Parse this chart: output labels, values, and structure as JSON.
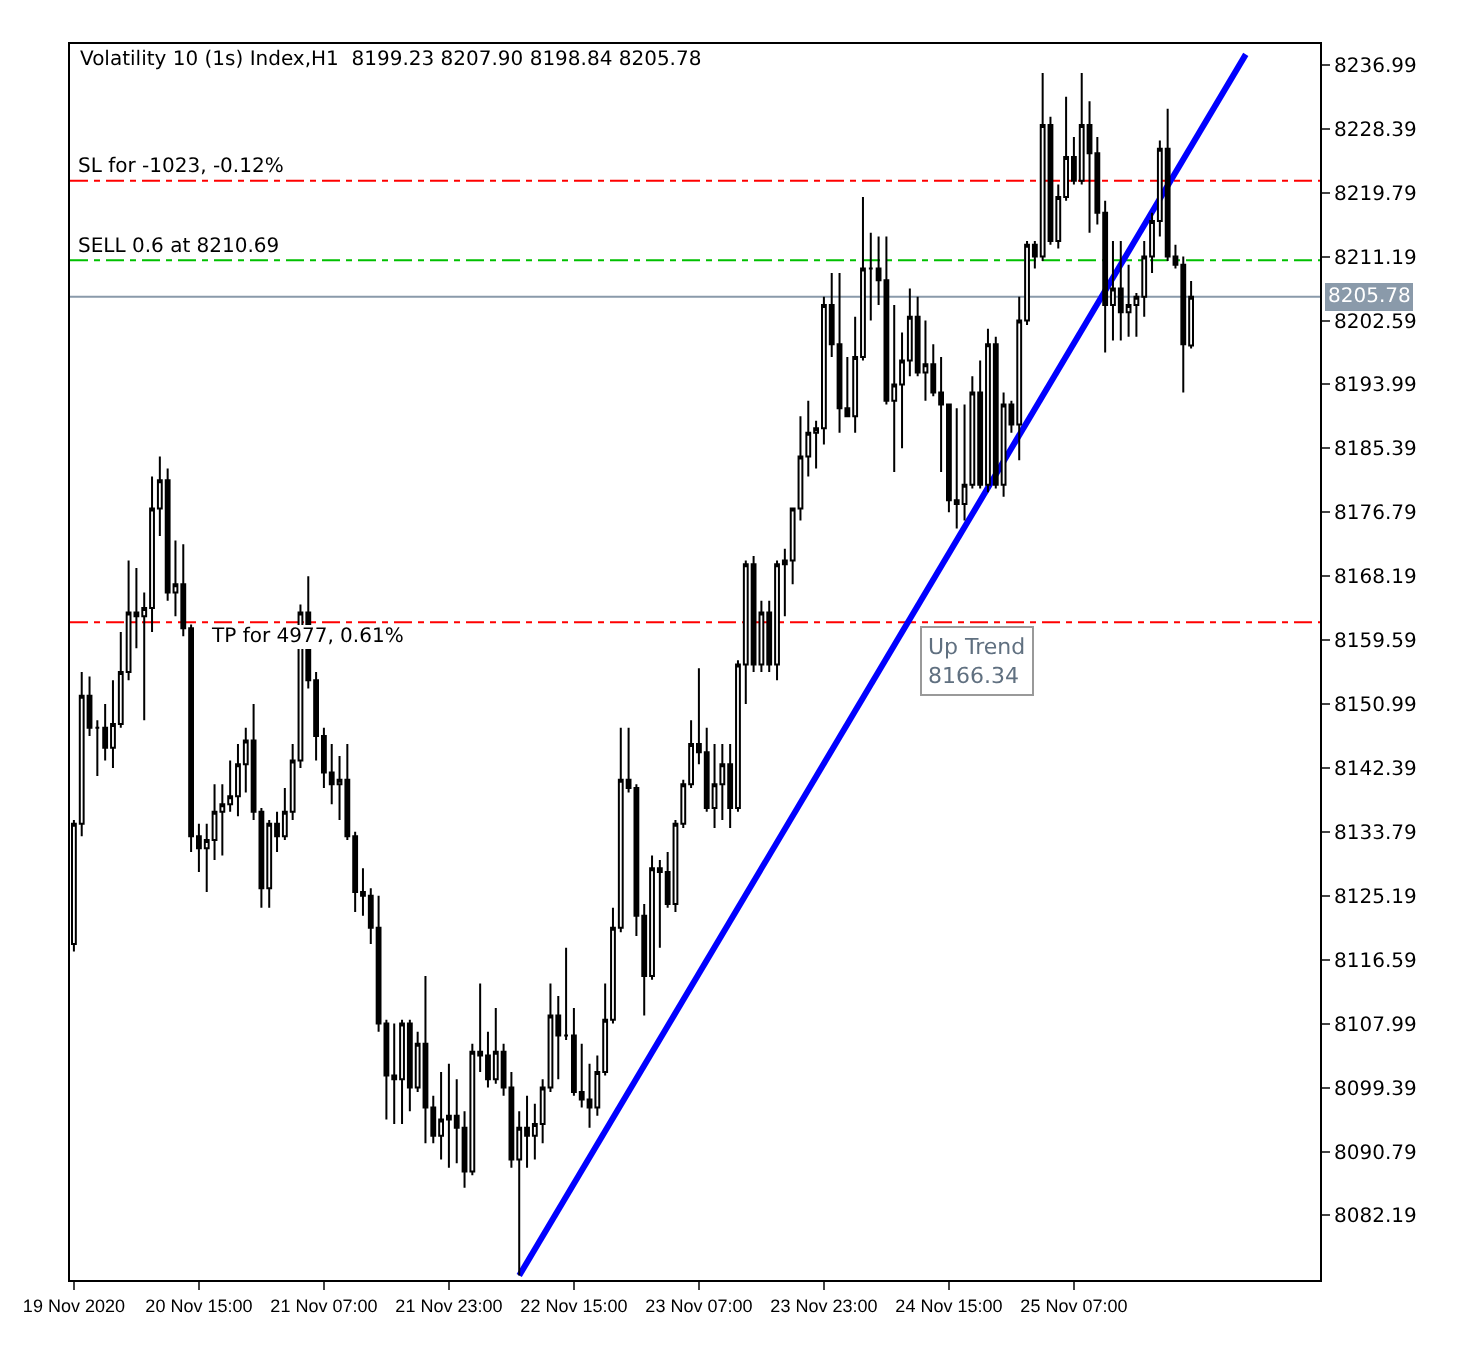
{
  "chart_data": {
    "type": "candlestick",
    "title": "Volatility 10 (1s) Index,H1  8199.23 8207.90 8198.84 8205.78",
    "x": [
      "2020-11-19T23:00",
      "2020-11-20T00:00",
      "2020-11-20T01:00",
      "2020-11-20T02:00",
      "2020-11-20T03:00",
      "2020-11-20T04:00",
      "2020-11-20T05:00",
      "2020-11-20T06:00",
      "2020-11-20T07:00",
      "2020-11-20T08:00",
      "2020-11-20T09:00",
      "2020-11-20T10:00",
      "2020-11-20T11:00",
      "2020-11-20T12:00",
      "2020-11-20T13:00",
      "2020-11-20T14:00",
      "2020-11-20T15:00",
      "2020-11-20T16:00",
      "2020-11-20T17:00",
      "2020-11-20T18:00",
      "2020-11-20T19:00",
      "2020-11-20T20:00",
      "2020-11-20T21:00",
      "2020-11-20T22:00",
      "2020-11-20T23:00",
      "2020-11-21T00:00",
      "2020-11-21T01:00",
      "2020-11-21T02:00",
      "2020-11-21T03:00",
      "2020-11-21T04:00",
      "2020-11-21T05:00",
      "2020-11-21T06:00",
      "2020-11-21T07:00",
      "2020-11-21T08:00",
      "2020-11-21T09:00",
      "2020-11-21T10:00",
      "2020-11-21T11:00",
      "2020-11-21T12:00",
      "2020-11-21T13:00",
      "2020-11-21T14:00",
      "2020-11-21T15:00",
      "2020-11-21T16:00",
      "2020-11-21T17:00",
      "2020-11-21T18:00",
      "2020-11-21T19:00",
      "2020-11-21T20:00",
      "2020-11-21T21:00",
      "2020-11-21T22:00",
      "2020-11-21T23:00",
      "2020-11-22T00:00",
      "2020-11-22T01:00",
      "2020-11-22T02:00",
      "2020-11-22T03:00",
      "2020-11-22T04:00",
      "2020-11-22T05:00",
      "2020-11-22T06:00",
      "2020-11-22T07:00",
      "2020-11-22T08:00",
      "2020-11-22T09:00",
      "2020-11-22T10:00",
      "2020-11-22T11:00",
      "2020-11-22T12:00",
      "2020-11-22T13:00",
      "2020-11-22T14:00",
      "2020-11-22T15:00",
      "2020-11-22T16:00",
      "2020-11-22T17:00",
      "2020-11-22T18:00",
      "2020-11-22T19:00",
      "2020-11-22T20:00",
      "2020-11-22T21:00",
      "2020-11-22T22:00",
      "2020-11-22T23:00",
      "2020-11-23T00:00",
      "2020-11-23T01:00",
      "2020-11-23T02:00",
      "2020-11-23T03:00",
      "2020-11-23T04:00",
      "2020-11-23T05:00",
      "2020-11-23T06:00",
      "2020-11-23T07:00",
      "2020-11-23T08:00",
      "2020-11-23T09:00",
      "2020-11-23T10:00",
      "2020-11-23T11:00",
      "2020-11-23T12:00",
      "2020-11-23T13:00",
      "2020-11-23T14:00",
      "2020-11-23T15:00",
      "2020-11-23T16:00",
      "2020-11-23T17:00",
      "2020-11-23T18:00",
      "2020-11-23T19:00",
      "2020-11-23T20:00",
      "2020-11-23T21:00",
      "2020-11-23T22:00",
      "2020-11-23T23:00",
      "2020-11-24T00:00",
      "2020-11-24T01:00",
      "2020-11-24T02:00",
      "2020-11-24T03:00",
      "2020-11-24T04:00",
      "2020-11-24T05:00",
      "2020-11-24T06:00",
      "2020-11-24T07:00",
      "2020-11-24T08:00",
      "2020-11-24T09:00",
      "2020-11-24T10:00",
      "2020-11-24T11:00",
      "2020-11-24T12:00",
      "2020-11-24T13:00",
      "2020-11-24T14:00",
      "2020-11-24T15:00",
      "2020-11-24T16:00",
      "2020-11-24T17:00",
      "2020-11-24T18:00",
      "2020-11-24T19:00",
      "2020-11-24T20:00",
      "2020-11-24T21:00",
      "2020-11-24T22:00",
      "2020-11-24T23:00",
      "2020-11-25T00:00",
      "2020-11-25T01:00",
      "2020-11-25T02:00",
      "2020-11-25T03:00",
      "2020-11-25T04:00",
      "2020-11-25T05:00",
      "2020-11-25T06:00",
      "2020-11-25T07:00",
      "2020-11-25T08:00",
      "2020-11-25T09:00",
      "2020-11-25T10:00",
      "2020-11-25T11:00",
      "2020-11-25T12:00",
      "2020-11-25T13:00",
      "2020-11-25T14:00",
      "2020-11-25T15:00",
      "2020-11-25T16:00",
      "2020-11-25T17:00",
      "2020-11-25T18:00",
      "2020-11-25T19:00",
      "2020-11-25T20:00",
      "2020-11-25T21:00",
      "2020-11-25T22:00"
    ],
    "ohlc": [
      [
        8118.7,
        8135.4,
        8117.7,
        8134.9
      ],
      [
        8134.9,
        8155.3,
        8133.2,
        8152.1
      ],
      [
        8152.1,
        8154.7,
        8146.7,
        8147.8
      ],
      [
        8147.8,
        8148.8,
        8141.3,
        8147.8
      ],
      [
        8147.8,
        8151.0,
        8143.4,
        8145.1
      ],
      [
        8145.1,
        8154.2,
        8142.4,
        8148.3
      ],
      [
        8148.3,
        8160.7,
        8147.8,
        8155.3
      ],
      [
        8155.3,
        8170.3,
        8154.2,
        8163.3
      ],
      [
        8163.3,
        8169.3,
        8158.5,
        8162.8
      ],
      [
        8162.8,
        8166.0,
        8148.8,
        8163.9
      ],
      [
        8163.9,
        8181.6,
        8160.7,
        8177.3
      ],
      [
        8177.3,
        8184.3,
        8173.6,
        8181.1
      ],
      [
        8181.1,
        8182.7,
        8164.9,
        8166.0
      ],
      [
        8166.0,
        8173.0,
        8162.8,
        8167.1
      ],
      [
        8167.1,
        8172.5,
        8160.1,
        8161.2
      ],
      [
        8161.2,
        8161.7,
        8131.1,
        8133.2
      ],
      [
        8133.2,
        8134.9,
        8128.4,
        8131.6
      ],
      [
        8131.6,
        8134.9,
        8125.7,
        8132.7
      ],
      [
        8132.7,
        8140.2,
        8130.0,
        8136.5
      ],
      [
        8136.5,
        8140.2,
        8130.6,
        8137.5
      ],
      [
        8137.5,
        8143.4,
        8136.5,
        8138.6
      ],
      [
        8138.6,
        8145.6,
        8135.9,
        8142.9
      ],
      [
        8142.9,
        8147.8,
        8139.1,
        8146.1
      ],
      [
        8146.1,
        8151.0,
        8135.4,
        8136.5
      ],
      [
        8136.5,
        8137.0,
        8123.6,
        8126.2
      ],
      [
        8126.2,
        8135.4,
        8123.6,
        8134.9
      ],
      [
        8134.9,
        8136.5,
        8131.1,
        8133.2
      ],
      [
        8133.2,
        8139.7,
        8132.7,
        8136.5
      ],
      [
        8136.5,
        8145.6,
        8135.4,
        8143.4
      ],
      [
        8143.4,
        8164.4,
        8142.4,
        8163.3
      ],
      [
        8163.3,
        8168.2,
        8153.1,
        8154.2
      ],
      [
        8154.2,
        8155.3,
        8143.4,
        8146.7
      ],
      [
        8146.7,
        8147.8,
        8139.7,
        8141.8
      ],
      [
        8141.8,
        8145.6,
        8137.5,
        8140.2
      ],
      [
        8140.2,
        8144.0,
        8135.4,
        8140.8
      ],
      [
        8140.8,
        8145.6,
        8132.7,
        8133.2
      ],
      [
        8133.2,
        8133.8,
        8123.0,
        8125.7
      ],
      [
        8125.7,
        8128.9,
        8122.5,
        8125.2
      ],
      [
        8125.2,
        8126.2,
        8118.7,
        8120.9
      ],
      [
        8120.9,
        8125.2,
        8106.9,
        8108.0
      ],
      [
        8108.0,
        8108.5,
        8095.1,
        8101.0
      ],
      [
        8101.0,
        8108.0,
        8094.5,
        8100.5
      ],
      [
        8100.5,
        8108.5,
        8094.5,
        8108.0
      ],
      [
        8108.0,
        8108.5,
        8096.2,
        8099.4
      ],
      [
        8099.4,
        8106.9,
        8098.8,
        8105.3
      ],
      [
        8105.3,
        8114.4,
        8091.9,
        8096.7
      ],
      [
        8096.7,
        8098.3,
        8091.9,
        8092.9
      ],
      [
        8092.9,
        8101.5,
        8089.7,
        8095.1
      ],
      [
        8095.1,
        8102.6,
        8088.6,
        8095.6
      ],
      [
        8095.6,
        8100.5,
        8089.2,
        8094.0
      ],
      [
        8094.0,
        8096.2,
        8085.9,
        8088.1
      ],
      [
        8088.1,
        8105.3,
        8087.6,
        8104.2
      ],
      [
        8104.2,
        8113.4,
        8101.5,
        8103.7
      ],
      [
        8103.7,
        8106.9,
        8099.4,
        8100.5
      ],
      [
        8100.5,
        8110.1,
        8099.9,
        8104.2
      ],
      [
        8104.2,
        8105.3,
        8098.3,
        8099.4
      ],
      [
        8099.4,
        8101.5,
        8088.6,
        8089.7
      ],
      [
        8089.7,
        8096.2,
        8074.1,
        8094.0
      ],
      [
        8094.0,
        8098.3,
        8088.6,
        8092.9
      ],
      [
        8092.9,
        8097.2,
        8089.7,
        8094.5
      ],
      [
        8094.5,
        8100.5,
        8091.9,
        8099.4
      ],
      [
        8099.4,
        8113.4,
        8098.8,
        8109.1
      ],
      [
        8109.1,
        8111.7,
        8100.5,
        8106.4
      ],
      [
        8106.4,
        8118.2,
        8105.8,
        8106.4
      ],
      [
        8106.4,
        8110.1,
        8098.3,
        8098.8
      ],
      [
        8098.8,
        8105.3,
        8096.7,
        8097.8
      ],
      [
        8097.8,
        8102.6,
        8094.0,
        8096.7
      ],
      [
        8096.7,
        8103.7,
        8095.6,
        8101.5
      ],
      [
        8101.5,
        8113.4,
        8101.0,
        8108.5
      ],
      [
        8108.5,
        8123.6,
        8108.0,
        8120.9
      ],
      [
        8120.9,
        8147.8,
        8120.3,
        8140.8
      ],
      [
        8140.8,
        8147.8,
        8139.1,
        8139.7
      ],
      [
        8139.7,
        8140.2,
        8119.8,
        8122.5
      ],
      [
        8122.5,
        8124.1,
        8109.1,
        8114.4
      ],
      [
        8114.4,
        8130.6,
        8113.9,
        8128.9
      ],
      [
        8128.9,
        8130.0,
        8118.2,
        8128.4
      ],
      [
        8128.4,
        8131.1,
        8123.6,
        8124.1
      ],
      [
        8124.1,
        8135.4,
        8123.0,
        8134.9
      ],
      [
        8134.9,
        8140.8,
        8134.3,
        8140.2
      ],
      [
        8140.2,
        8148.8,
        8139.7,
        8145.6
      ],
      [
        8145.6,
        8155.8,
        8142.9,
        8144.5
      ],
      [
        8144.5,
        8147.8,
        8136.5,
        8137.0
      ],
      [
        8137.0,
        8145.6,
        8134.3,
        8140.2
      ],
      [
        8140.2,
        8145.6,
        8135.4,
        8142.9
      ],
      [
        8142.9,
        8145.6,
        8134.3,
        8137.0
      ],
      [
        8137.0,
        8156.9,
        8136.5,
        8156.3
      ],
      [
        8156.3,
        8170.3,
        8151.0,
        8169.8
      ],
      [
        8169.8,
        8170.9,
        8155.3,
        8156.3
      ],
      [
        8156.3,
        8164.9,
        8155.3,
        8163.3
      ],
      [
        8163.3,
        8164.9,
        8155.3,
        8156.3
      ],
      [
        8156.3,
        8170.3,
        8154.2,
        8169.8
      ],
      [
        8169.8,
        8171.9,
        8162.8,
        8170.3
      ],
      [
        8170.3,
        8177.3,
        8167.1,
        8177.3
      ],
      [
        8177.3,
        8189.7,
        8175.7,
        8184.3
      ],
      [
        8184.3,
        8191.8,
        8181.6,
        8187.5
      ],
      [
        8187.5,
        8189.1,
        8182.7,
        8188.1
      ],
      [
        8188.1,
        8205.8,
        8185.9,
        8204.7
      ],
      [
        8204.7,
        8209.0,
        8197.7,
        8199.4
      ],
      [
        8199.4,
        8209.0,
        8187.5,
        8190.8
      ],
      [
        8190.8,
        8197.7,
        8189.7,
        8189.7
      ],
      [
        8189.7,
        8203.1,
        8187.5,
        8197.7
      ],
      [
        8197.7,
        8219.2,
        8197.2,
        8209.6
      ],
      [
        8209.6,
        8214.4,
        8202.6,
        8209.6
      ],
      [
        8209.6,
        8213.9,
        8204.7,
        8208.0
      ],
      [
        8208.0,
        8213.9,
        8191.3,
        8191.8
      ],
      [
        8191.8,
        8204.7,
        8182.2,
        8194.0
      ],
      [
        8194.0,
        8201.0,
        8185.4,
        8197.2
      ],
      [
        8197.2,
        8206.9,
        8195.1,
        8203.1
      ],
      [
        8203.1,
        8205.8,
        8195.1,
        8195.6
      ],
      [
        8195.6,
        8202.6,
        8191.8,
        8196.7
      ],
      [
        8196.7,
        8199.4,
        8192.4,
        8192.9
      ],
      [
        8192.9,
        8197.7,
        8182.2,
        8191.3
      ],
      [
        8191.3,
        8191.3,
        8176.8,
        8178.4
      ],
      [
        8178.4,
        8190.8,
        8174.6,
        8177.9
      ],
      [
        8177.9,
        8191.3,
        8175.7,
        8180.5
      ],
      [
        8180.5,
        8195.1,
        8180.0,
        8192.9
      ],
      [
        8192.9,
        8197.2,
        8180.0,
        8180.5
      ],
      [
        8180.5,
        8201.5,
        8179.5,
        8199.4
      ],
      [
        8199.4,
        8200.4,
        8180.0,
        8180.5
      ],
      [
        8180.5,
        8192.9,
        8178.9,
        8191.3
      ],
      [
        8191.3,
        8191.8,
        8187.5,
        8188.6
      ],
      [
        8188.6,
        8205.8,
        8183.8,
        8202.6
      ],
      [
        8202.6,
        8213.3,
        8202.0,
        8212.8
      ],
      [
        8212.8,
        8213.3,
        8209.6,
        8211.2
      ],
      [
        8211.2,
        8235.9,
        8210.6,
        8228.9
      ],
      [
        8228.9,
        8230.0,
        8212.8,
        8213.3
      ],
      [
        8213.3,
        8220.9,
        8212.3,
        8219.2
      ],
      [
        8219.2,
        8232.7,
        8218.7,
        8224.6
      ],
      [
        8224.6,
        8227.3,
        8220.9,
        8221.4
      ],
      [
        8221.4,
        8235.9,
        8220.9,
        8228.9
      ],
      [
        8228.9,
        8232.1,
        8214.4,
        8225.1
      ],
      [
        8225.1,
        8227.3,
        8215.5,
        8217.1
      ],
      [
        8217.1,
        8218.7,
        8198.3,
        8204.7
      ],
      [
        8204.7,
        8213.3,
        8199.9,
        8206.9
      ],
      [
        8206.9,
        8213.3,
        8199.9,
        8203.7
      ],
      [
        8203.7,
        8210.1,
        8200.4,
        8204.7
      ],
      [
        8204.7,
        8206.3,
        8200.4,
        8205.8
      ],
      [
        8205.8,
        8213.3,
        8203.1,
        8211.2
      ],
      [
        8211.2,
        8217.1,
        8209.0,
        8216.0
      ],
      [
        8216.0,
        8226.8,
        8213.9,
        8225.7
      ],
      [
        8225.7,
        8231.1,
        8210.6,
        8211.2
      ],
      [
        8211.2,
        8212.8,
        8209.6,
        8210.1
      ],
      [
        8210.1,
        8211.2,
        8192.9,
        8199.4
      ],
      [
        8199.23,
        8207.9,
        8198.84,
        8205.78
      ]
    ],
    "series": [
      {
        "type": "line",
        "color": "#0000ff",
        "x": [
          "2020-11-22T08:00",
          "2020-11-26T05:00"
        ],
        "values": [
          8074.1,
          8238.4
        ]
      }
    ],
    "ref_lines": [
      {
        "axis": "y",
        "value": 8221.4,
        "label": "SL for -1023, -0.12%",
        "color": "#ff0000",
        "line_style": "dashdot"
      },
      {
        "axis": "y",
        "value": 8210.69,
        "label": "SELL 0.6 at 8210.69",
        "color": "#00c000",
        "line_style": "dashdot"
      },
      {
        "axis": "y",
        "value": 8205.78,
        "label": "8205.78",
        "color": "#8a9aaa",
        "line_style": "solid"
      },
      {
        "axis": "y",
        "value": 8162.0,
        "label": "TP for 4977, 0.61%",
        "color": "#ff0000",
        "line_style": "dashdot"
      }
    ],
    "annotations": [
      "Up Trend\n8166.34"
    ],
    "xlim": [
      "2020-11-19T22:30",
      "2020-11-26T14:30"
    ],
    "xticks": [
      {
        "value": "2020-11-19T23:00",
        "label": "19 Nov 2020"
      },
      {
        "value": "2020-11-20T15:00",
        "label": "20 Nov 15:00"
      },
      {
        "value": "2020-11-21T07:00",
        "label": "21 Nov 07:00"
      },
      {
        "value": "2020-11-21T23:00",
        "label": "21 Nov 23:00"
      },
      {
        "value": "2020-11-22T15:00",
        "label": "22 Nov 15:00"
      },
      {
        "value": "2020-11-23T07:00",
        "label": "23 Nov 07:00"
      },
      {
        "value": "2020-11-23T23:00",
        "label": "23 Nov 23:00"
      },
      {
        "value": "2020-11-24T15:00",
        "label": "24 Nov 15:00"
      },
      {
        "value": "2020-11-25T07:00",
        "label": "25 Nov 07:00"
      }
    ],
    "ylim": [
      8073.5,
      8239.8
    ],
    "yticks": [
      8236.99,
      8228.39,
      8219.79,
      8211.19,
      8202.59,
      8193.99,
      8185.39,
      8176.79,
      8168.19,
      8159.59,
      8150.99,
      8142.39,
      8133.79,
      8125.19,
      8116.59,
      8107.99,
      8099.39,
      8090.79,
      8082.19
    ]
  }
}
